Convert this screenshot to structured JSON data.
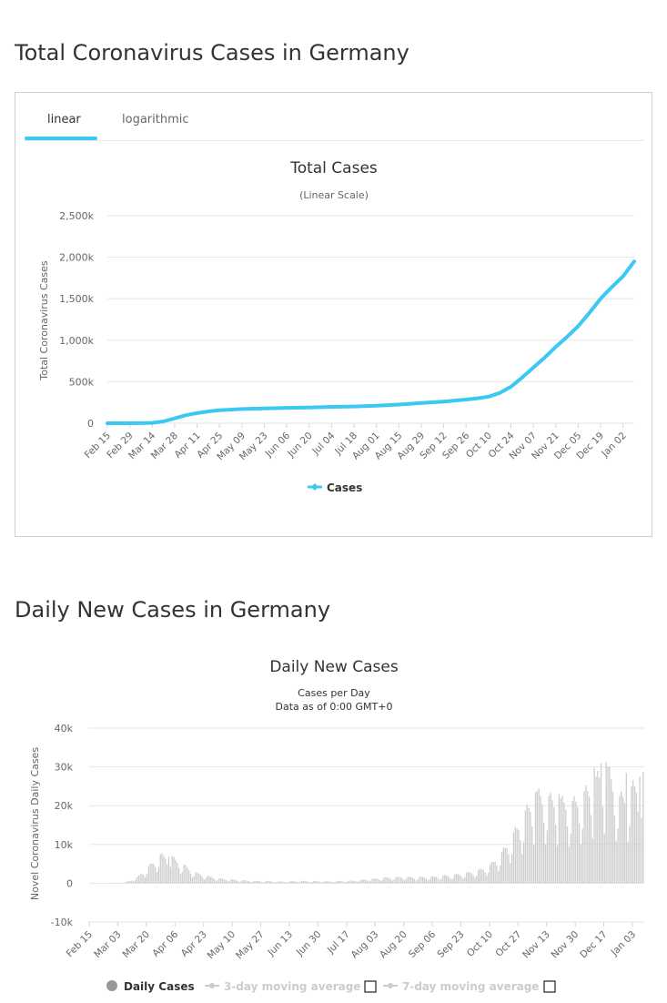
{
  "sections": {
    "total_title": "Total Coronavirus Cases in Germany",
    "daily_title": "Daily New Cases in Germany"
  },
  "tabs": [
    {
      "label": "linear",
      "active": true
    },
    {
      "label": "logarithmic",
      "active": false
    }
  ],
  "colors": {
    "accent": "#3bc8f2",
    "bar": "#cccccc",
    "grid": "#e6e6e6",
    "legend_disabled": "#cccccc"
  },
  "chart_data": [
    {
      "type": "line",
      "title": "Total Cases",
      "subtitle": "(Linear Scale)",
      "ylabel": "Total Coronavirus Cases",
      "ylim": [
        0,
        2500000
      ],
      "yticks": [
        "0",
        "500k",
        "1,000k",
        "1,500k",
        "2,000k",
        "2,500k"
      ],
      "xticks": [
        "Feb 15",
        "Feb 29",
        "Mar 14",
        "Mar 28",
        "Apr 11",
        "Apr 25",
        "May 09",
        "May 23",
        "Jun 06",
        "Jun 20",
        "Jul 04",
        "Jul 18",
        "Aug 01",
        "Aug 15",
        "Aug 29",
        "Sep 12",
        "Sep 26",
        "Oct 10",
        "Oct 24",
        "Nov 07",
        "Nov 21",
        "Dec 05",
        "Dec 19",
        "Jan 02"
      ],
      "grid": true,
      "legend_position": "bottom",
      "series": [
        {
          "name": "Cases",
          "x": [
            "Feb 15",
            "Feb 29",
            "Mar 14",
            "Mar 21",
            "Mar 28",
            "Apr 04",
            "Apr 11",
            "Apr 18",
            "Apr 25",
            "May 09",
            "May 23",
            "Jun 06",
            "Jun 20",
            "Jul 04",
            "Jul 18",
            "Aug 01",
            "Aug 15",
            "Aug 29",
            "Sep 12",
            "Sep 26",
            "Oct 03",
            "Oct 10",
            "Oct 17",
            "Oct 24",
            "Oct 31",
            "Nov 07",
            "Nov 14",
            "Nov 21",
            "Nov 28",
            "Dec 05",
            "Dec 12",
            "Dec 19",
            "Dec 26",
            "Jan 02",
            "Jan 09"
          ],
          "values": [
            16,
            79,
            4800,
            22000,
            58000,
            96000,
            122000,
            143000,
            157000,
            171000,
            179000,
            185000,
            190000,
            197000,
            202000,
            210000,
            225000,
            243000,
            260000,
            285000,
            300000,
            320000,
            365000,
            440000,
            550000,
            670000,
            790000,
            920000,
            1040000,
            1170000,
            1330000,
            1500000,
            1640000,
            1770000,
            1950000
          ]
        }
      ]
    },
    {
      "type": "bar",
      "title": "Daily New Cases",
      "subtitle_lines": [
        "Cases per Day",
        "Data as of 0:00 GMT+0"
      ],
      "ylabel": "Novel Coronavirus Daily Cases",
      "ylim": [
        -10000,
        40000
      ],
      "yticks": [
        "-10k",
        "0",
        "10k",
        "20k",
        "30k",
        "40k"
      ],
      "xticks": [
        "Feb 15",
        "Mar 03",
        "Mar 20",
        "Apr 06",
        "Apr 23",
        "May 10",
        "May 27",
        "Jun 13",
        "Jun 30",
        "Jul 17",
        "Aug 03",
        "Aug 20",
        "Sep 06",
        "Sep 23",
        "Oct 10",
        "Oct 27",
        "Nov 13",
        "Nov 30",
        "Dec 17",
        "Jan 03"
      ],
      "grid": true,
      "legend_position": "bottom",
      "legend": [
        {
          "label": "Daily Cases",
          "enabled": true
        },
        {
          "label": "3-day moving average",
          "enabled": false
        },
        {
          "label": "7-day moving average",
          "enabled": false
        }
      ],
      "weekly_x": [
        "Feb 15",
        "Feb 22",
        "Feb 29",
        "Mar 07",
        "Mar 14",
        "Mar 21",
        "Mar 28",
        "Apr 04",
        "Apr 11",
        "Apr 18",
        "Apr 25",
        "May 02",
        "May 09",
        "May 16",
        "May 23",
        "May 30",
        "Jun 06",
        "Jun 13",
        "Jun 20",
        "Jun 27",
        "Jul 04",
        "Jul 11",
        "Jul 18",
        "Jul 25",
        "Aug 01",
        "Aug 08",
        "Aug 15",
        "Aug 22",
        "Aug 29",
        "Sep 05",
        "Sep 12",
        "Sep 19",
        "Sep 26",
        "Oct 03",
        "Oct 10",
        "Oct 17",
        "Oct 24",
        "Oct 31",
        "Nov 07",
        "Nov 14",
        "Nov 21",
        "Nov 28",
        "Dec 05",
        "Dec 12",
        "Dec 19",
        "Dec 26",
        "Jan 02",
        "Jan 09"
      ],
      "weekly_values": [
        0,
        5,
        30,
        150,
        1200,
        3500,
        6000,
        5500,
        3800,
        2200,
        1500,
        1000,
        800,
        600,
        500,
        450,
        350,
        400,
        500,
        450,
        400,
        450,
        500,
        700,
        900,
        1200,
        1300,
        1300,
        1300,
        1400,
        1600,
        1800,
        2200,
        2700,
        3800,
        6500,
        10500,
        15000,
        19000,
        18000,
        17500,
        17000,
        19000,
        22000,
        24000,
        18000,
        20000,
        23000
      ],
      "peak_values": [
        {
          "x": "Apr 02",
          "value": 6800
        },
        {
          "x": "Nov 06",
          "value": 23500
        },
        {
          "x": "Nov 20",
          "value": 23000
        },
        {
          "x": "Dec 11",
          "value": 29800
        },
        {
          "x": "Dec 15",
          "value": 31000
        },
        {
          "x": "Dec 18",
          "value": 31200
        },
        {
          "x": "Dec 30",
          "value": 28400
        },
        {
          "x": "Jan 07",
          "value": 27500
        }
      ]
    }
  ]
}
